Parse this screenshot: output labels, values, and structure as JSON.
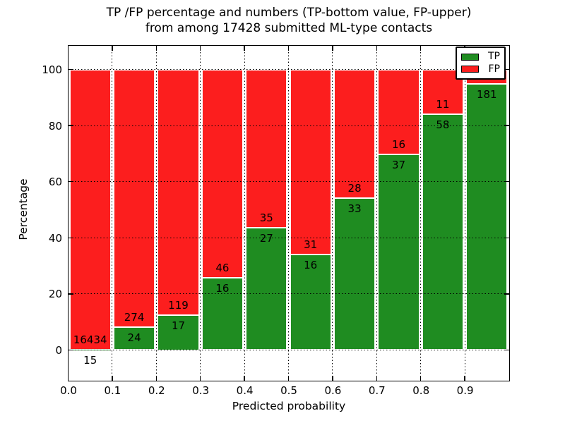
{
  "chart_data": {
    "type": "bar",
    "variant": "stacked-percentage",
    "title_line1": "TP /FP percentage and numbers (TP-bottom value, FP-upper)",
    "title_line2": "from among 17428 submitted ML-type contacts",
    "total_submitted": "17428",
    "xlabel": "Predicted probability",
    "ylabel": "Percentage",
    "x_tick_labels": [
      "0.0",
      "0.1",
      "0.2",
      "0.3",
      "0.4",
      "0.5",
      "0.6",
      "0.7",
      "0.8",
      "0.9"
    ],
    "y_ticks": [
      0,
      20,
      40,
      60,
      80,
      100
    ],
    "y_tick_labels": [
      "0",
      "20",
      "40",
      "60",
      "80",
      "100"
    ],
    "xlim": [
      0.0,
      1.0
    ],
    "bin_width": 0.1,
    "grid_style": "dotted",
    "grid_on": true,
    "series": [
      {
        "name": "TP",
        "color": "#1f8c21",
        "counts": [
          15,
          24,
          17,
          16,
          27,
          16,
          33,
          37,
          58,
          181
        ]
      },
      {
        "name": "FP",
        "color": "#fc1e1e",
        "counts": [
          16434,
          274,
          119,
          46,
          35,
          31,
          28,
          16,
          11,
          10
        ]
      }
    ],
    "tp_percentages_approx": [
      0.1,
      8.1,
      12.5,
      25.8,
      43.5,
      34.0,
      54.1,
      69.8,
      84.1,
      94.8
    ],
    "bar_count_labels": {
      "tp": [
        "15",
        "24",
        "17",
        "16",
        "27",
        "16",
        "33",
        "37",
        "58",
        "181"
      ],
      "fp": [
        "16434",
        "274",
        "119",
        "46",
        "35",
        "31",
        "28",
        "16",
        "11",
        ""
      ]
    },
    "legend": {
      "position": "upper-right",
      "entries": [
        {
          "label": "TP",
          "color": "#1f8c21"
        },
        {
          "label": "FP",
          "color": "#fc1e1e"
        }
      ]
    }
  }
}
